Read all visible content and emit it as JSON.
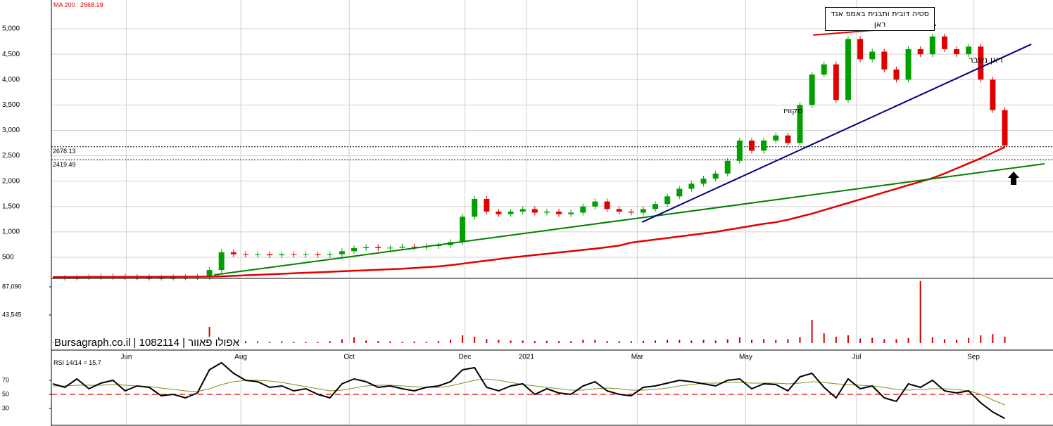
{
  "chart_data": [
    {
      "type": "candlestick",
      "title": "MA 200 : 2668.19",
      "xlim": [
        0,
        83
      ],
      "ylim": [
        85,
        5568
      ],
      "grid": true,
      "yticks": [
        500,
        {
          "value": 1000,
          "label": "1,000"
        },
        {
          "value": 1500,
          "label": "1,500"
        },
        {
          "value": 2000,
          "label": "2,000"
        },
        {
          "value": 2500,
          "label": "2,500"
        },
        {
          "value": 3000,
          "label": "3,000"
        },
        {
          "value": 3500,
          "label": "3,500"
        },
        {
          "value": 4000,
          "label": "4,000"
        },
        {
          "value": 4500,
          "label": "4,500"
        },
        {
          "value": 5000,
          "label": "5,000"
        }
      ],
      "series": [
        {
          "color_up": "#00a000",
          "color_down": "#e00000",
          "values": [
            100,
            100,
            105,
            110,
            120,
            115,
            110,
            105,
            100,
            100,
            105,
            110,
            115,
            250,
            600,
            560,
            550,
            560,
            540,
            560,
            550,
            560,
            545,
            560,
            620,
            680,
            700,
            680,
            690,
            710,
            700,
            720,
            740,
            800,
            1300,
            1650,
            1400,
            1350,
            1400,
            1450,
            1380,
            1400,
            1350,
            1380,
            1500,
            1600,
            1450,
            1400,
            1380,
            1450,
            1550,
            1700,
            1850,
            1950,
            2050,
            2150,
            2400,
            2800,
            2600,
            2800,
            2900,
            2750,
            3500,
            4100,
            4300,
            3600,
            4800,
            4400,
            4550,
            4200,
            4000,
            4600,
            4500,
            4850,
            4600,
            4500,
            4650,
            4000,
            3400,
            2700
          ]
        },
        {
          "color": "#e00000",
          "values": [
            110,
            110,
            110,
            112,
            112,
            113,
            113,
            114,
            114,
            115,
            116,
            117,
            118,
            120,
            125,
            135,
            145,
            155,
            165,
            175,
            185,
            195,
            205,
            215,
            225,
            235,
            245,
            255,
            265,
            275,
            290,
            305,
            320,
            345,
            375,
            405,
            435,
            465,
            495,
            520,
            545,
            570,
            595,
            620,
            645,
            670,
            700,
            730,
            790,
            820,
            850,
            880,
            910,
            940,
            970,
            1000,
            1040,
            1080,
            1120,
            1160,
            1190,
            1240,
            1300,
            1360,
            1430,
            1500,
            1570,
            1640,
            1710,
            1780,
            1850,
            1920,
            1990,
            2060,
            2150,
            2250,
            2350,
            2450,
            2560,
            2670
          ]
        }
      ],
      "hlines": [
        2678.13,
        2419.49
      ],
      "trendlines": [
        {
          "color": "#008000",
          "x": [
            13.4,
            82.3
          ],
          "values": [
            154,
            2342
          ]
        },
        {
          "color": "#000080",
          "x": [
            48.9,
            81.2
          ],
          "values": [
            1192,
            4697
          ]
        },
        {
          "color": "#e00000",
          "x": [
            63.1,
            73.3
          ],
          "values": [
            4877,
            5071
          ]
        }
      ],
      "annotations": [
        "סטיה דובית ותבנית באמפ אנד ראן",
        "ראן נשבר",
        "סקוויז"
      ],
      "watermark": "Bursagraph.co.il | 1082114 | אפולו פאוור"
    },
    {
      "type": "bar",
      "xlim": [
        0,
        83
      ],
      "ylim": [
        0,
        98000
      ],
      "color": "#cc0000",
      "yticks": [
        {
          "value": 43545,
          "label": "43,545"
        },
        {
          "value": 87090,
          "label": "87,090"
        }
      ],
      "values": [
        500,
        400,
        300,
        2000,
        600,
        400,
        300,
        300,
        200,
        300,
        300,
        400,
        500,
        25000,
        9000,
        4000,
        3000,
        2500,
        2000,
        2500,
        2000,
        2000,
        1800,
        3000,
        6000,
        9000,
        4000,
        3000,
        2500,
        2000,
        2500,
        2000,
        3000,
        5000,
        12000,
        10000,
        6000,
        5000,
        4000,
        4000,
        3000,
        3500,
        3000,
        3000,
        5000,
        5000,
        3000,
        3000,
        3000,
        3500,
        4000,
        5000,
        5000,
        4000,
        5000,
        4000,
        6000,
        9000,
        5000,
        6000,
        5000,
        6000,
        9000,
        36000,
        15000,
        10000,
        12000,
        7000,
        8000,
        6000,
        6000,
        8000,
        96000,
        9000,
        6000,
        5000,
        8000,
        12000,
        14000,
        10000
      ]
    },
    {
      "type": "line",
      "title": "RSI 14/14 = 15.7",
      "xlim": [
        0,
        83
      ],
      "ylim": [
        7,
        111
      ],
      "yticks": [
        30,
        50,
        70
      ],
      "reference_line": 50,
      "xticks": [
        {
          "value": 6.1,
          "label": "Jun"
        },
        {
          "value": 15.6,
          "label": "Aug"
        },
        {
          "value": 24.6,
          "label": "Oct"
        },
        {
          "value": 34.2,
          "label": "Dec"
        },
        {
          "value": 39.3,
          "label": "2021"
        },
        {
          "value": 48.5,
          "label": "Mar"
        },
        {
          "value": 57.5,
          "label": "May"
        },
        {
          "value": 66.7,
          "label": "Jul"
        },
        {
          "value": 76.4,
          "label": "Sep"
        }
      ],
      "series": [
        {
          "color": "#000000",
          "values": [
            65,
            60,
            72,
            58,
            66,
            70,
            55,
            62,
            60,
            48,
            50,
            45,
            52,
            85,
            95,
            80,
            70,
            68,
            60,
            62,
            55,
            58,
            50,
            45,
            65,
            72,
            68,
            60,
            62,
            58,
            55,
            60,
            62,
            68,
            85,
            88,
            60,
            55,
            62,
            65,
            50,
            58,
            52,
            50,
            62,
            68,
            55,
            50,
            48,
            60,
            62,
            66,
            70,
            68,
            65,
            62,
            70,
            72,
            58,
            65,
            64,
            55,
            75,
            80,
            60,
            45,
            72,
            58,
            62,
            45,
            40,
            65,
            60,
            70,
            55,
            52,
            55,
            38,
            25,
            15.7
          ]
        },
        {
          "color": "#8a8a20",
          "values": [
            62,
            62,
            63,
            63,
            63,
            64,
            63,
            62,
            61,
            59,
            57,
            55,
            54,
            58,
            64,
            68,
            70,
            70,
            69,
            67,
            64,
            61,
            58,
            55,
            56,
            59,
            62,
            63,
            63,
            62,
            61,
            60,
            60,
            62,
            66,
            70,
            72,
            70,
            67,
            64,
            62,
            60,
            58,
            56,
            56,
            58,
            59,
            58,
            56,
            56,
            57,
            59,
            62,
            64,
            66,
            66,
            67,
            67,
            66,
            66,
            66,
            65,
            66,
            68,
            67,
            65,
            64,
            63,
            62,
            60,
            57,
            56,
            57,
            58,
            58,
            57,
            55,
            50,
            42,
            35
          ]
        }
      ]
    }
  ]
}
